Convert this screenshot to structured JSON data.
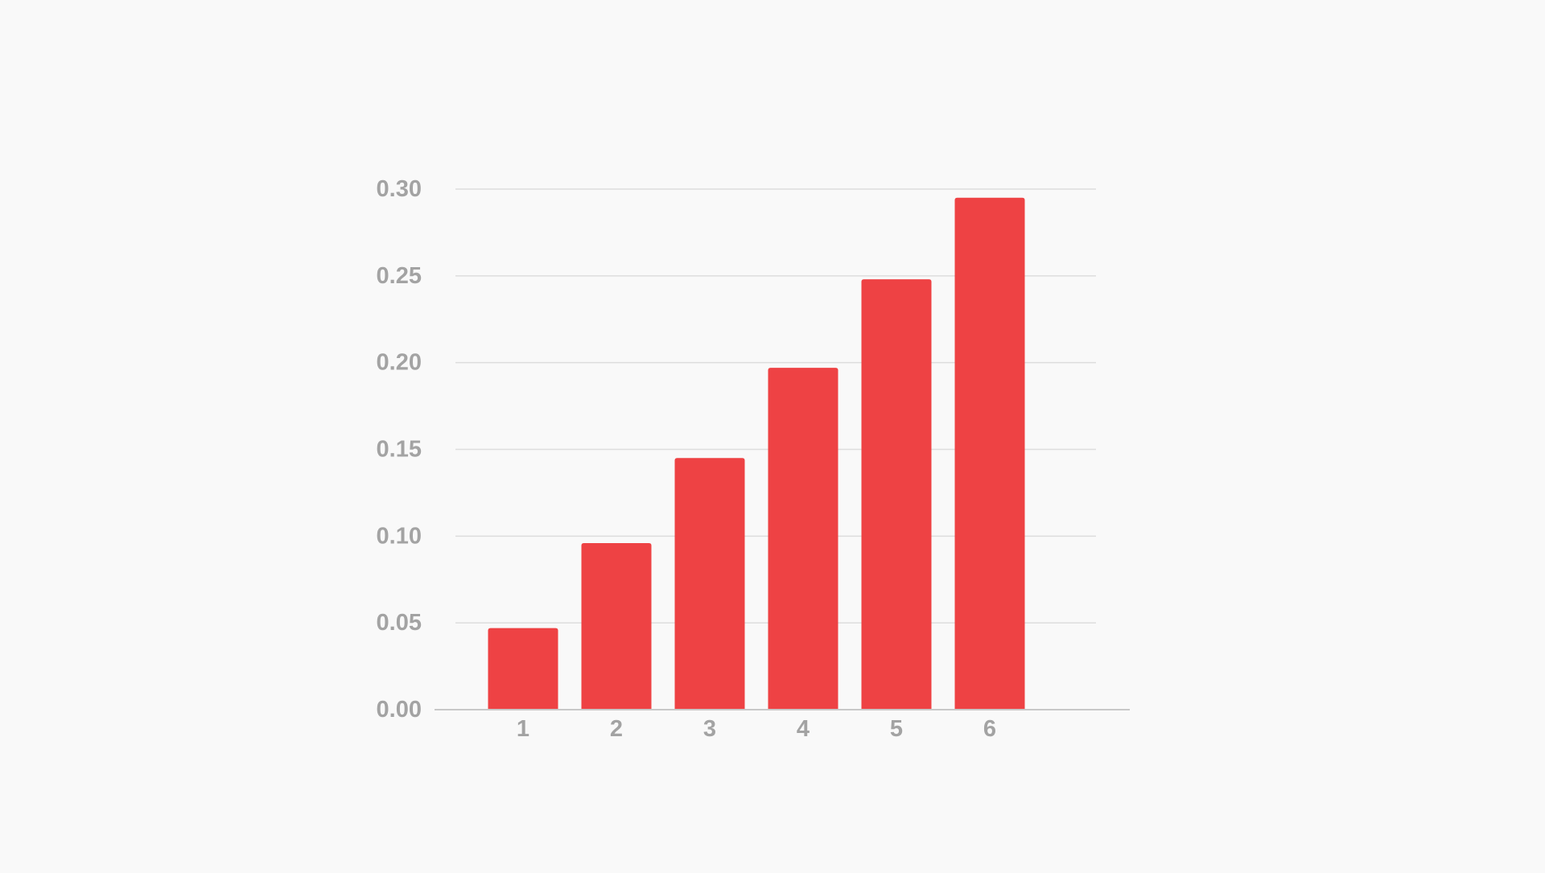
{
  "colors": {
    "background": "#f9f9f9",
    "bar": "#ee4244",
    "gridline": "#dddddd",
    "axis_line": "#c8c8c8",
    "tick_text": "#a3a3a3"
  },
  "chart_data": {
    "type": "bar",
    "title": "",
    "xlabel": "",
    "ylabel": "",
    "categories": [
      "1",
      "2",
      "3",
      "4",
      "5",
      "6"
    ],
    "values": [
      0.047,
      0.096,
      0.145,
      0.197,
      0.248,
      0.295
    ],
    "ylim": [
      0,
      0.3
    ],
    "yticks": [
      "0.00",
      "0.05",
      "0.10",
      "0.15",
      "0.20",
      "0.25",
      "0.30"
    ],
    "grid": true,
    "legend": "none"
  }
}
